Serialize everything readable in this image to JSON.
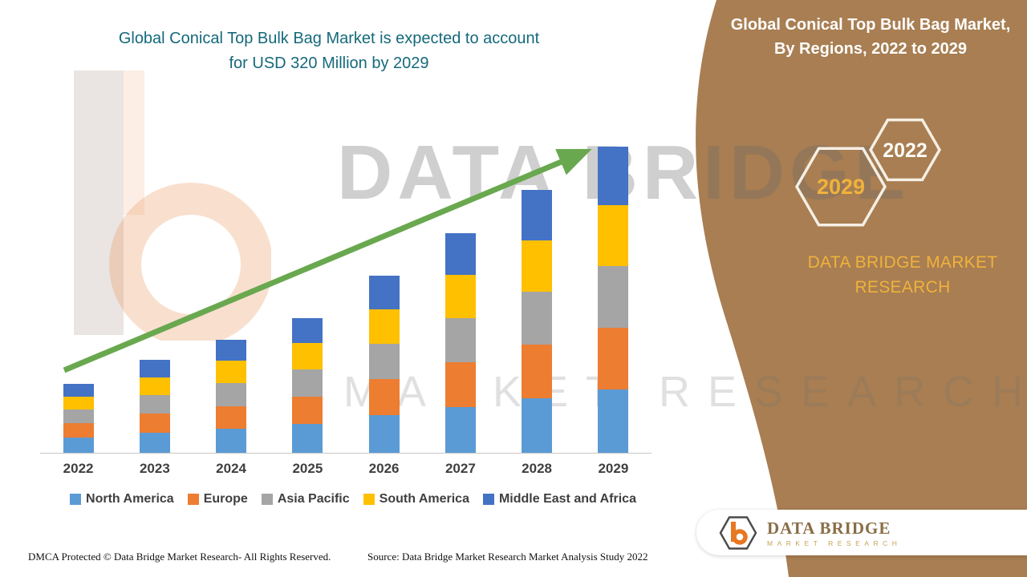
{
  "page": {
    "title_line1": "Global Conical Top Bulk Bag Market is expected to account",
    "title_line2": "for USD 320 Million by 2029",
    "title_color": "#15697B",
    "footer_dmca": "DMCA Protected © Data Bridge Market Research- All Rights Reserved.",
    "footer_source": "Source: Data Bridge Market Research Market Analysis Study 2022"
  },
  "watermark": {
    "line1": "DATA BRIDGE",
    "line2": "MARKET RESEARCH"
  },
  "side_panel": {
    "panel_color": "#A87E52",
    "accent_gold": "#F0B23C",
    "title_line1": "Global Conical Top Bulk Bag Market,",
    "title_line2": "By Regions, 2022 to 2029",
    "hexagon_back_label": "2029",
    "hexagon_front_label": "2022",
    "brand_line1": "DATA BRIDGE MARKET",
    "brand_line2": "RESEARCH",
    "logo_card": {
      "brand_name": "DATA BRIDGE",
      "brand_tagline": "MARKET RESEARCH"
    }
  },
  "chart_data": {
    "type": "bar",
    "stacked": true,
    "title": "Global Conical Top Bulk Bag Market is expected to account for USD 320 Million by 2029",
    "unit_hint": "USD Million",
    "categories": [
      "2022",
      "2023",
      "2024",
      "2025",
      "2026",
      "2027",
      "2028",
      "2029"
    ],
    "series": [
      {
        "name": "North America",
        "color": "#5B9BD5",
        "values": [
          16,
          21,
          25,
          30,
          39,
          48,
          57,
          66
        ]
      },
      {
        "name": "Europe",
        "color": "#ED7D31",
        "values": [
          15,
          20,
          24,
          29,
          38,
          47,
          56,
          65
        ]
      },
      {
        "name": "Asia Pacific",
        "color": "#A5A5A5",
        "values": [
          14,
          19,
          24,
          28,
          37,
          46,
          55,
          64
        ]
      },
      {
        "name": "South America",
        "color": "#FFC000",
        "values": [
          14,
          19,
          23,
          28,
          36,
          45,
          54,
          64
        ]
      },
      {
        "name": "Middle East and Africa",
        "color": "#4472C4",
        "values": [
          13,
          18,
          22,
          26,
          35,
          44,
          53,
          61
        ]
      }
    ],
    "estimated_totals": [
      72,
      97,
      118,
      141,
      185,
      230,
      275,
      320
    ],
    "ylim": [
      0,
      340
    ],
    "gridlines": false,
    "legend_position": "bottom",
    "trend_arrow": {
      "present": true,
      "color": "#69A84F",
      "direction": "up"
    }
  }
}
